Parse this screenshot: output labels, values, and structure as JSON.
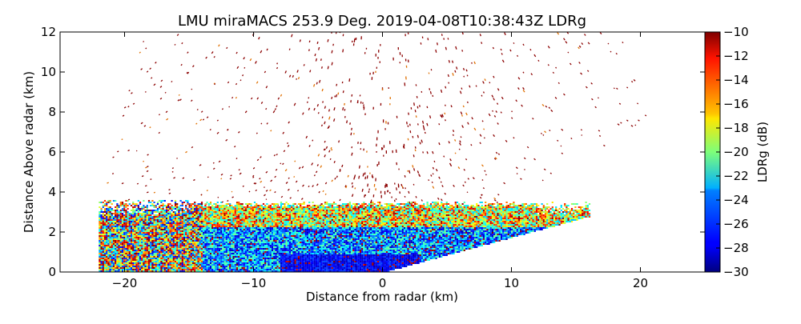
{
  "chart_data": {
    "type": "heatmap",
    "title": "LMU miraMACS 253.9 Deg. 2019-04-08T10:38:43Z  LDRg",
    "xlabel": "Distance from radar (km)",
    "ylabel": "Distance Above radar  (km)",
    "xlim": [
      -25,
      25
    ],
    "ylim": [
      0,
      12
    ],
    "x_ticks": [
      -20,
      -10,
      0,
      10,
      20
    ],
    "x_tick_labels": [
      "−20",
      "−10",
      "0",
      "10",
      "20"
    ],
    "y_ticks": [
      0,
      2,
      4,
      6,
      8,
      10,
      12
    ],
    "y_tick_labels": [
      "0",
      "2",
      "4",
      "6",
      "8",
      "10",
      "12"
    ],
    "scan": {
      "azimuth_deg": 253.9,
      "max_range_km": 22,
      "low_layer_top_km": 3.6,
      "dense_cloud_top_km": 2.6
    },
    "colorbar": {
      "label": "LDRg (dB)",
      "min": -30,
      "max": -10,
      "colormap": "jet",
      "ticks": [
        -10,
        -12,
        -14,
        -16,
        -18,
        -20,
        -22,
        -24,
        -26,
        -28,
        -30
      ],
      "tick_labels": [
        "−10",
        "−12",
        "−14",
        "−16",
        "−18",
        "−20",
        "−22",
        "−24",
        "−26",
        "−28",
        "−30"
      ]
    }
  }
}
